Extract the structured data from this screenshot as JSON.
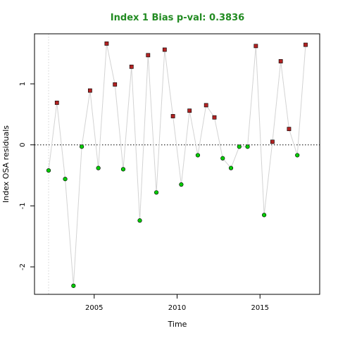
{
  "chart_data": {
    "type": "scatter",
    "title": "Index 1 Bias p-val: 0.3836",
    "title_color": "#228B22",
    "xlabel": "Time",
    "ylabel": "Index OSA residuals",
    "xlim": [
      2001.4,
      2018.6
    ],
    "ylim": [
      -2.45,
      1.82
    ],
    "x_ticks": [
      2005,
      2010,
      2015
    ],
    "y_ticks": [
      -2,
      -1,
      0,
      1
    ],
    "zero_line": 0,
    "vertical_line": 2002.25,
    "colors": {
      "positive": "#B22222",
      "negative": "#00CC00",
      "line": "#D3D3D3",
      "point_outline": "#000000"
    },
    "series": [
      {
        "x": [
          2002.25,
          2002.75,
          2003.25,
          2003.75,
          2004.25,
          2004.75,
          2005.25,
          2005.75,
          2006.25,
          2006.75,
          2007.25,
          2007.75,
          2008.25,
          2008.75,
          2009.25,
          2009.75,
          2010.25,
          2010.75,
          2011.25,
          2011.75,
          2012.25,
          2012.75,
          2013.25,
          2013.75,
          2014.25,
          2014.75,
          2015.25,
          2015.75,
          2016.25,
          2016.75,
          2017.25,
          2017.75
        ],
        "y": [
          -0.42,
          0.69,
          -0.56,
          -2.31,
          -0.03,
          0.89,
          -0.38,
          1.66,
          0.99,
          -0.4,
          1.28,
          -1.24,
          1.47,
          -0.78,
          1.56,
          0.47,
          -0.65,
          0.56,
          -0.17,
          0.65,
          0.45,
          -0.22,
          -0.38,
          -0.03,
          -0.03,
          1.62,
          -1.15,
          0.05,
          1.37,
          0.26,
          -0.17,
          1.64
        ]
      }
    ]
  }
}
